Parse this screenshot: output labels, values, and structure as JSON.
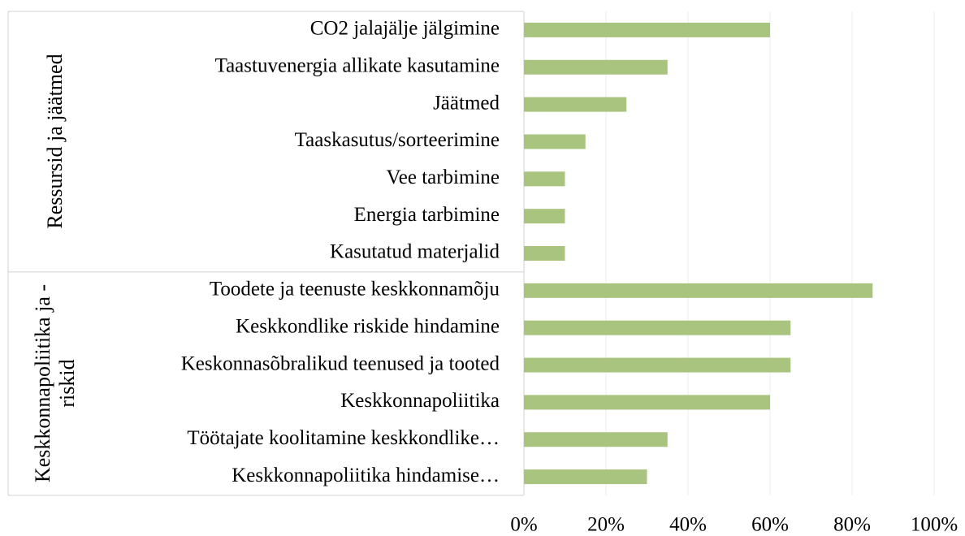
{
  "chart_data": {
    "type": "bar",
    "orientation": "horizontal",
    "color": "#a9c47f",
    "grid": true,
    "groups": [
      {
        "name": "Ressursid ja jäätmed",
        "categories": [
          "CO2 jalajälje jälgimine",
          "Taastuvenergia allikate kasutamine",
          "Jäätmed",
          "Taaskasutus/sorteerimine",
          "Vee tarbimine",
          "Energia tarbimine",
          "Kasutatud materjalid"
        ],
        "values": [
          60,
          35,
          25,
          15,
          10,
          10,
          10
        ]
      },
      {
        "name": "Keskkonnapoliitika ja -riskid",
        "categories": [
          "Toodete ja teenuste keskkonnamõju",
          "Keskkondlike riskide hindamine",
          "Keskonnasõbralikud teenused ja tooted",
          "Keskkonnapoliitika",
          "Töötajate koolitamine keskkondlike…",
          "Keskkonnapoliitika hindamise…"
        ],
        "values": [
          85,
          65,
          65,
          60,
          35,
          30
        ]
      }
    ],
    "xlim": [
      0,
      100
    ],
    "xticks": [
      {
        "value": 0,
        "label": "0%"
      },
      {
        "value": 20,
        "label": "20%"
      },
      {
        "value": 40,
        "label": "40%"
      },
      {
        "value": 60,
        "label": "60%"
      },
      {
        "value": 80,
        "label": "80%"
      },
      {
        "value": 100,
        "label": "100%"
      }
    ]
  }
}
